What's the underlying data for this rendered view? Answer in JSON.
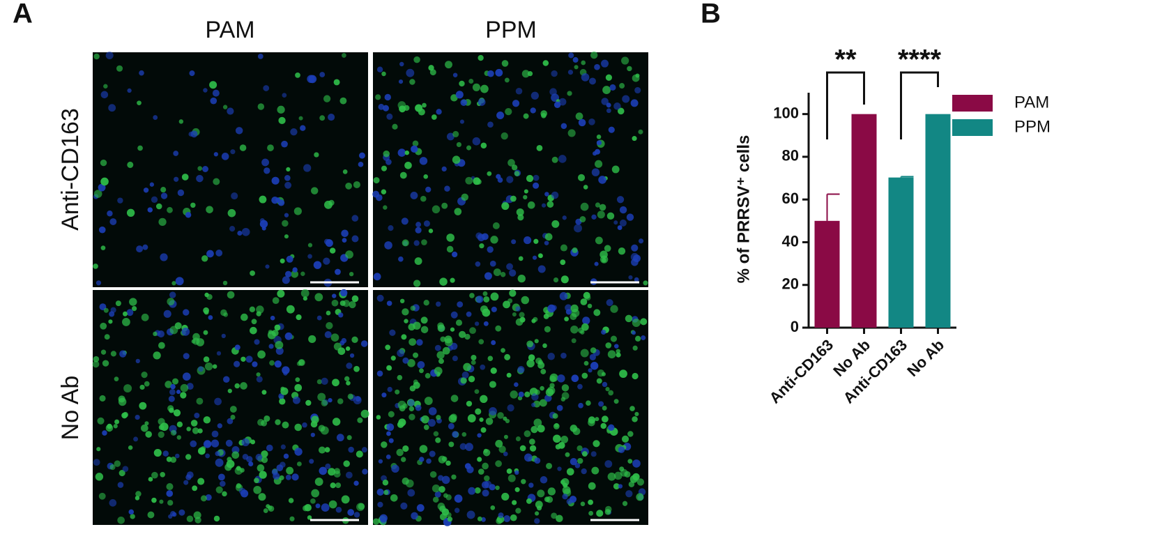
{
  "panel_a": {
    "label": "A",
    "columns": [
      "PAM",
      "PPM"
    ],
    "rows": [
      "Anti-CD163",
      "No Ab"
    ]
  },
  "chart_data": {
    "type": "bar",
    "panel_label": "B",
    "ylabel": "% of PRRSV⁺ cells",
    "categories": [
      "Anti-CD163",
      "No Ab",
      "Anti-CD163",
      "No Ab"
    ],
    "series": [
      {
        "name": "PAM",
        "color": "#8a0a45",
        "values": [
          50,
          100,
          null,
          null
        ],
        "errors": [
          12.5,
          null,
          null,
          null
        ]
      },
      {
        "name": "PPM",
        "color": "#128784",
        "values": [
          null,
          null,
          70.3,
          100
        ],
        "errors": [
          null,
          null,
          0.4,
          null
        ]
      }
    ],
    "annotations": [
      "**",
      "****"
    ],
    "ylim": [
      0,
      110
    ],
    "yticks": [
      0,
      20,
      40,
      60,
      80,
      100
    ],
    "grid": false,
    "legend": "right"
  }
}
